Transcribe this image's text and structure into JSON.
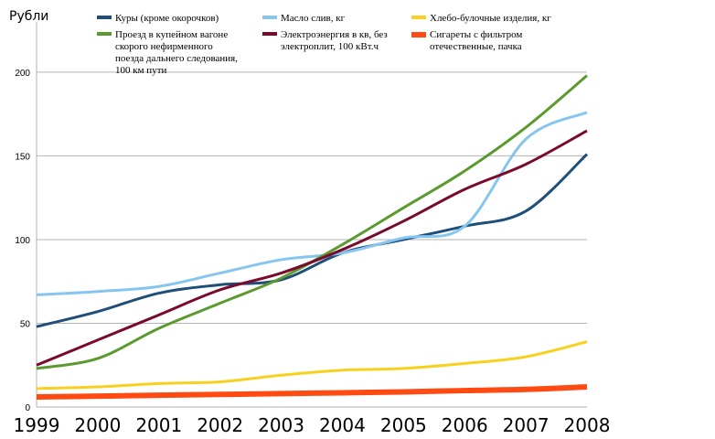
{
  "chart_data": {
    "type": "line",
    "title": "",
    "xlabel": "",
    "ylabel": "Рубли",
    "x": [
      1999,
      2000,
      2001,
      2002,
      2003,
      2004,
      2005,
      2006,
      2007,
      2008
    ],
    "xlim": [
      1999,
      2008
    ],
    "ylim": [
      0,
      230
    ],
    "yticks": [
      0,
      50,
      100,
      150,
      200
    ],
    "grid": true,
    "legend_position": "top",
    "series": [
      {
        "name": "Куры (кроме окорочков)",
        "color": "#1f4e79",
        "values": [
          48,
          57,
          68,
          73,
          76,
          92,
          100,
          108,
          117,
          151
        ]
      },
      {
        "name": "Масло слив, кг",
        "color": "#85c5ef",
        "values": [
          67,
          69,
          72,
          80,
          88,
          92,
          101,
          108,
          160,
          176
        ]
      },
      {
        "name": "Хлебо-булочные изделия, кг",
        "color": "#f7d11e",
        "values": [
          11,
          12,
          14,
          15,
          19,
          22,
          23,
          26,
          30,
          39
        ]
      },
      {
        "name": "Проезд в купейном вагоне скорого нефирменного поезда дальнего следования, 100 км пути",
        "color": "#5b9a2f",
        "values": [
          23,
          29,
          47,
          62,
          77,
          97,
          119,
          141,
          167,
          198
        ]
      },
      {
        "name": "Электроэнергия в кв, без электроплит, 100 кВт.ч",
        "color": "#7a0a2b",
        "values": [
          25,
          40,
          55,
          70,
          80,
          94,
          111,
          130,
          145,
          165
        ]
      },
      {
        "name": "Сигареты с фильтром отечественные, пачка",
        "color": "#ff4a12",
        "values": [
          6,
          6.5,
          7,
          7.5,
          8,
          8.5,
          9,
          9.8,
          10.5,
          12
        ]
      }
    ],
    "legend": [
      {
        "lines": [
          "Куры (кроме окорочков)"
        ]
      },
      {
        "lines": [
          "Масло слив, кг"
        ]
      },
      {
        "lines": [
          "Хлебо-булочные изделия, кг"
        ]
      },
      {
        "lines": [
          "Проезд в купейном вагоне",
          "скорого нефирменного",
          "поезда дальнего следования,",
          "100 км пути"
        ]
      },
      {
        "lines": [
          "Электроэнергия в кв, без",
          "электроплит, 100 кВт.ч"
        ]
      },
      {
        "lines": [
          "Сигареты с фильтром",
          "отечественные, пачка"
        ]
      }
    ]
  }
}
